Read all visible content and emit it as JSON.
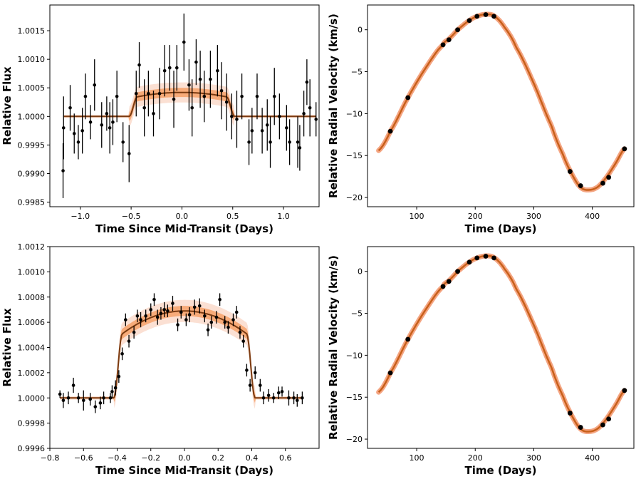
{
  "colors": {
    "band": "#f4a582",
    "band_core": "#f47f30",
    "model": "#7a3a10",
    "rv_line": "#c8601a",
    "points": "#000000"
  },
  "chart_data": [
    {
      "id": "transit_top",
      "type": "scatter",
      "title": "",
      "xlabel": "Time Since Mid-Transit (Days)",
      "ylabel": "Relative Flux",
      "xlim": [
        -1.3,
        1.35
      ],
      "ylim": [
        0.99842,
        1.00195
      ],
      "xticks": [
        -1.0,
        -0.5,
        0.0,
        0.5,
        1.0
      ],
      "xtick_labels": [
        "−1.0",
        "−0.5",
        "0.0",
        "0.5",
        "1.0"
      ],
      "yticks": [
        0.9985,
        0.999,
        0.9995,
        1.0,
        1.0005,
        1.001,
        1.0015
      ],
      "ytick_labels": [
        "0.9985",
        "0.9990",
        "0.9995",
        "1.0000",
        "1.0005",
        "1.0010",
        "1.0015"
      ],
      "model": {
        "depth": 0.00042,
        "half_width": 0.48,
        "ingress": 0.04,
        "limb": 0.22,
        "band_sigma": 8e-05
      },
      "points": [
        [
          -1.17,
          0.99905,
          0.00048
        ],
        [
          -1.165,
          0.9998,
          0.00055
        ],
        [
          -1.1,
          1.00015,
          0.0004
        ],
        [
          -1.06,
          0.9997,
          0.00035
        ],
        [
          -1.02,
          0.99955,
          0.0003
        ],
        [
          -0.98,
          0.99975,
          0.0004
        ],
        [
          -0.95,
          1.00035,
          0.0004
        ],
        [
          -0.9,
          0.9999,
          0.0003
        ],
        [
          -0.86,
          1.00055,
          0.00045
        ],
        [
          -0.79,
          0.99985,
          0.0004
        ],
        [
          -0.74,
          1.00005,
          0.0003
        ],
        [
          -0.71,
          0.9998,
          0.00045
        ],
        [
          -0.68,
          0.9999,
          0.0004
        ],
        [
          -0.64,
          1.00035,
          0.00045
        ],
        [
          -0.58,
          0.99955,
          0.00035
        ],
        [
          -0.52,
          0.99935,
          0.0005
        ],
        [
          -0.45,
          1.0004,
          0.0004
        ],
        [
          -0.42,
          1.0009,
          0.0004
        ],
        [
          -0.37,
          1.00015,
          0.0005
        ],
        [
          -0.33,
          1.0004,
          0.0004
        ],
        [
          -0.28,
          1.00005,
          0.0004
        ],
        [
          -0.22,
          1.0004,
          0.00045
        ],
        [
          -0.17,
          1.0008,
          0.00045
        ],
        [
          -0.12,
          1.00085,
          0.0004
        ],
        [
          -0.08,
          1.0003,
          0.0005
        ],
        [
          -0.05,
          1.00085,
          0.0004
        ],
        [
          0.02,
          1.0013,
          0.0005
        ],
        [
          0.07,
          1.00055,
          0.00045
        ],
        [
          0.1,
          1.00015,
          0.0005
        ],
        [
          0.14,
          1.00095,
          0.0004
        ],
        [
          0.18,
          1.00065,
          0.0005
        ],
        [
          0.22,
          1.00035,
          0.00045
        ],
        [
          0.28,
          1.00065,
          0.0005
        ],
        [
          0.35,
          1.0008,
          0.00045
        ],
        [
          0.39,
          1.00045,
          0.0005
        ],
        [
          0.44,
          1.00025,
          0.0005
        ],
        [
          0.49,
          1.0,
          0.0004
        ],
        [
          0.54,
          0.99995,
          0.0005
        ],
        [
          0.59,
          1.00035,
          0.0004
        ],
        [
          0.66,
          0.99955,
          0.0004
        ],
        [
          0.69,
          0.99975,
          0.0004
        ],
        [
          0.74,
          1.00035,
          0.0004
        ],
        [
          0.79,
          0.99975,
          0.0004
        ],
        [
          0.84,
          0.99985,
          0.00045
        ],
        [
          0.87,
          0.99955,
          0.00045
        ],
        [
          0.91,
          1.00035,
          0.0005
        ],
        [
          0.96,
          1.0,
          0.0004
        ],
        [
          1.03,
          0.9998,
          0.0004
        ],
        [
          1.06,
          0.99955,
          0.0004
        ],
        [
          1.14,
          0.99955,
          0.00045
        ],
        [
          1.16,
          0.99945,
          0.0004
        ],
        [
          1.2,
          1.00005,
          0.0004
        ],
        [
          1.23,
          1.0006,
          0.0004
        ],
        [
          1.26,
          1.00015,
          0.0005
        ],
        [
          1.32,
          0.99995,
          0.0003
        ]
      ]
    },
    {
      "id": "rv_top",
      "type": "line",
      "title": "",
      "xlabel": "Time (Days)",
      "ylabel": "Relative Radial Velocity (km/s)",
      "xlim": [
        16,
        471
      ],
      "ylim": [
        -21.1,
        2.95
      ],
      "xticks": [
        100,
        200,
        300,
        400
      ],
      "xtick_labels": [
        "100",
        "200",
        "300",
        "400"
      ],
      "yticks": [
        0,
        -5,
        -10,
        -15,
        -20
      ],
      "ytick_labels": [
        "0",
        "−5",
        "−10",
        "−15",
        "−20"
      ],
      "curve": {
        "t": [
          35,
          55,
          85,
          115,
          145,
          155,
          170,
          190,
          205,
          220,
          233,
          250,
          270,
          300,
          330,
          350,
          365,
          380,
          395,
          410,
          425,
          440,
          455
        ],
        "v": [
          -14.4,
          -12.1,
          -8.1,
          -4.6,
          -1.8,
          -1.1,
          0.0,
          1.1,
          1.65,
          1.85,
          1.6,
          0.3,
          -2.1,
          -6.4,
          -11.4,
          -14.9,
          -17.2,
          -18.8,
          -19.1,
          -18.7,
          -17.5,
          -15.9,
          -14.2
        ]
      },
      "points": [
        [
          55,
          -12.1
        ],
        [
          85,
          -8.1
        ],
        [
          145,
          -1.8
        ],
        [
          155,
          -1.2
        ],
        [
          170,
          0.0
        ],
        [
          190,
          1.1
        ],
        [
          203,
          1.6
        ],
        [
          218,
          1.8
        ],
        [
          232,
          1.6
        ],
        [
          362,
          -16.9
        ],
        [
          380,
          -18.6
        ],
        [
          418,
          -18.3
        ],
        [
          428,
          -17.6
        ],
        [
          455,
          -14.2
        ]
      ]
    },
    {
      "id": "transit_bottom",
      "type": "scatter",
      "title": "",
      "xlabel": "Time Since Mid-Transit (Days)",
      "ylabel": "Relative Flux",
      "xlim": [
        -0.8,
        0.8
      ],
      "ylim": [
        0.9996,
        1.0012
      ],
      "xticks": [
        -0.8,
        -0.6,
        -0.4,
        -0.2,
        0.0,
        0.2,
        0.4,
        0.6
      ],
      "xtick_labels": [
        "−0.8",
        "−0.6",
        "−0.4",
        "−0.2",
        "0.0",
        "0.2",
        "0.4",
        "0.6"
      ],
      "yticks": [
        0.9996,
        0.9998,
        1.0,
        1.0002,
        1.0004,
        1.0006,
        1.0008,
        1.001,
        1.0012
      ],
      "ytick_labels": [
        "0.9996",
        "0.9998",
        "1.0000",
        "1.0002",
        "1.0004",
        "1.0006",
        "1.0008",
        "1.0010",
        "1.0012"
      ],
      "model": {
        "depth": 0.00069,
        "half_width": 0.395,
        "ingress": 0.025,
        "limb": 0.3,
        "band_sigma": 4e-05
      },
      "points": [
        [
          -0.74,
          1.00003,
          3e-05
        ],
        [
          -0.72,
          0.99998,
          6e-05
        ],
        [
          -0.69,
          1.0,
          5e-05
        ],
        [
          -0.66,
          1.0001,
          6e-05
        ],
        [
          -0.63,
          1.0,
          4e-05
        ],
        [
          -0.6,
          0.99998,
          8e-05
        ],
        [
          -0.56,
          0.99999,
          5e-05
        ],
        [
          -0.53,
          0.99993,
          5e-05
        ],
        [
          -0.5,
          0.99996,
          5e-05
        ],
        [
          -0.48,
          1.0,
          5e-05
        ],
        [
          -0.44,
          1.0,
          4e-05
        ],
        [
          -0.43,
          1.00005,
          5e-05
        ],
        [
          -0.41,
          1.00008,
          6e-05
        ],
        [
          -0.39,
          1.00017,
          5e-05
        ],
        [
          -0.37,
          1.00035,
          5e-05
        ],
        [
          -0.35,
          1.00062,
          5e-05
        ],
        [
          -0.33,
          1.00045,
          5e-05
        ],
        [
          -0.3,
          1.00052,
          5e-05
        ],
        [
          -0.28,
          1.00065,
          5e-05
        ],
        [
          -0.26,
          1.00062,
          6e-05
        ],
        [
          -0.23,
          1.00065,
          5e-05
        ],
        [
          -0.2,
          1.0007,
          5e-05
        ],
        [
          -0.18,
          1.00078,
          5e-05
        ],
        [
          -0.16,
          1.00064,
          6e-05
        ],
        [
          -0.14,
          1.00067,
          5e-05
        ],
        [
          -0.12,
          1.0007,
          6e-05
        ],
        [
          -0.1,
          1.00069,
          5e-05
        ],
        [
          -0.07,
          1.00075,
          6e-05
        ],
        [
          -0.04,
          1.00058,
          5e-05
        ],
        [
          -0.02,
          1.00068,
          5e-05
        ],
        [
          0.01,
          1.00062,
          5e-05
        ],
        [
          0.03,
          1.00066,
          6e-05
        ],
        [
          0.06,
          1.00072,
          6e-05
        ],
        [
          0.09,
          1.00073,
          6e-05
        ],
        [
          0.12,
          1.00065,
          5e-05
        ],
        [
          0.14,
          1.00054,
          5e-05
        ],
        [
          0.16,
          1.0006,
          5e-05
        ],
        [
          0.19,
          1.00064,
          5e-05
        ],
        [
          0.21,
          1.00078,
          5e-05
        ],
        [
          0.24,
          1.0006,
          5e-05
        ],
        [
          0.26,
          1.00056,
          5e-05
        ],
        [
          0.29,
          1.00062,
          5e-05
        ],
        [
          0.31,
          1.00068,
          5e-05
        ],
        [
          0.33,
          1.00052,
          5e-05
        ],
        [
          0.35,
          1.00045,
          5e-05
        ],
        [
          0.37,
          1.00022,
          5e-05
        ],
        [
          0.39,
          1.0001,
          5e-05
        ],
        [
          0.42,
          1.0002,
          5e-05
        ],
        [
          0.45,
          1.0001,
          5e-05
        ],
        [
          0.47,
          1.0,
          5e-05
        ],
        [
          0.5,
          1.00002,
          5e-05
        ],
        [
          0.53,
          1.0,
          4e-05
        ],
        [
          0.56,
          1.00004,
          5e-05
        ],
        [
          0.58,
          1.00005,
          4e-05
        ],
        [
          0.62,
          1.0,
          6e-05
        ],
        [
          0.65,
          1.0,
          5e-05
        ],
        [
          0.67,
          0.99998,
          5e-05
        ],
        [
          0.7,
          1.0,
          5e-05
        ]
      ]
    },
    {
      "id": "rv_bottom",
      "type": "line",
      "title": "",
      "xlabel": "Time (Days)",
      "ylabel": "Relative Radial Velocity (km/s)",
      "xlim": [
        16,
        471
      ],
      "ylim": [
        -21.1,
        2.95
      ],
      "xticks": [
        100,
        200,
        300,
        400
      ],
      "xtick_labels": [
        "100",
        "200",
        "300",
        "400"
      ],
      "yticks": [
        0,
        -5,
        -10,
        -15,
        -20
      ],
      "ytick_labels": [
        "0",
        "−5",
        "−10",
        "−15",
        "−20"
      ],
      "curve": {
        "t": [
          35,
          55,
          85,
          115,
          145,
          155,
          170,
          190,
          205,
          220,
          233,
          250,
          270,
          300,
          330,
          350,
          365,
          380,
          395,
          410,
          425,
          440,
          455
        ],
        "v": [
          -14.4,
          -12.1,
          -8.1,
          -4.6,
          -1.8,
          -1.1,
          0.0,
          1.1,
          1.65,
          1.85,
          1.6,
          0.3,
          -2.1,
          -6.4,
          -11.4,
          -14.9,
          -17.2,
          -18.8,
          -19.1,
          -18.7,
          -17.5,
          -15.9,
          -14.2
        ]
      },
      "points": [
        [
          55,
          -12.1
        ],
        [
          85,
          -8.1
        ],
        [
          145,
          -1.8
        ],
        [
          155,
          -1.2
        ],
        [
          170,
          0.0
        ],
        [
          190,
          1.1
        ],
        [
          203,
          1.6
        ],
        [
          218,
          1.8
        ],
        [
          232,
          1.6
        ],
        [
          362,
          -16.9
        ],
        [
          380,
          -18.6
        ],
        [
          418,
          -18.3
        ],
        [
          428,
          -17.6
        ],
        [
          455,
          -14.2
        ]
      ]
    }
  ]
}
